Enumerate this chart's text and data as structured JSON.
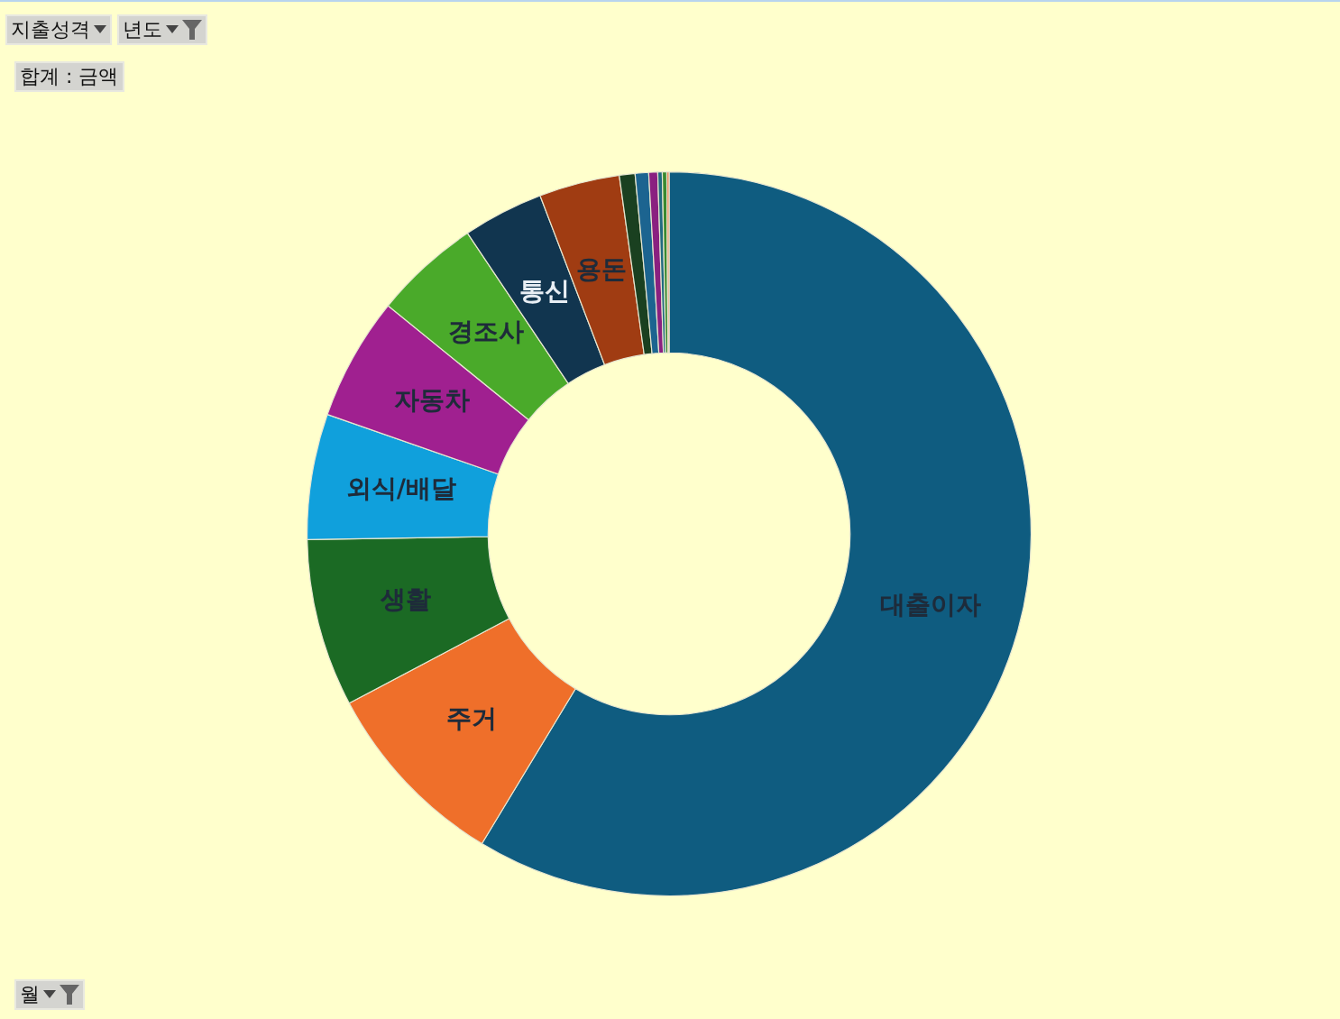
{
  "chart_data": {
    "type": "donut",
    "categories": [
      "대출이자",
      "주거",
      "생활",
      "외식/배달",
      "자동차",
      "경조사",
      "통신",
      "용돈",
      null,
      null,
      null,
      null,
      null,
      null
    ],
    "values": [
      58.65,
      8.6,
      7.5,
      5.6,
      5.5,
      4.75,
      3.6,
      3.6,
      0.7,
      0.6,
      0.4,
      0.2,
      0.2,
      0.1
    ],
    "colors": [
      "#0f5c80",
      "#ef6f2a",
      "#1b6a24",
      "#10a0dc",
      "#a02090",
      "#4aaa2a",
      "#11354f",
      "#a03c12",
      "#1a4020",
      "#1c6490",
      "#8a2080",
      "#206a80",
      "#3a8a30",
      "#e88050"
    ],
    "legend": false,
    "annotations": [
      "지출성격",
      "년도",
      "합계 : 금액",
      "월"
    ]
  }
}
